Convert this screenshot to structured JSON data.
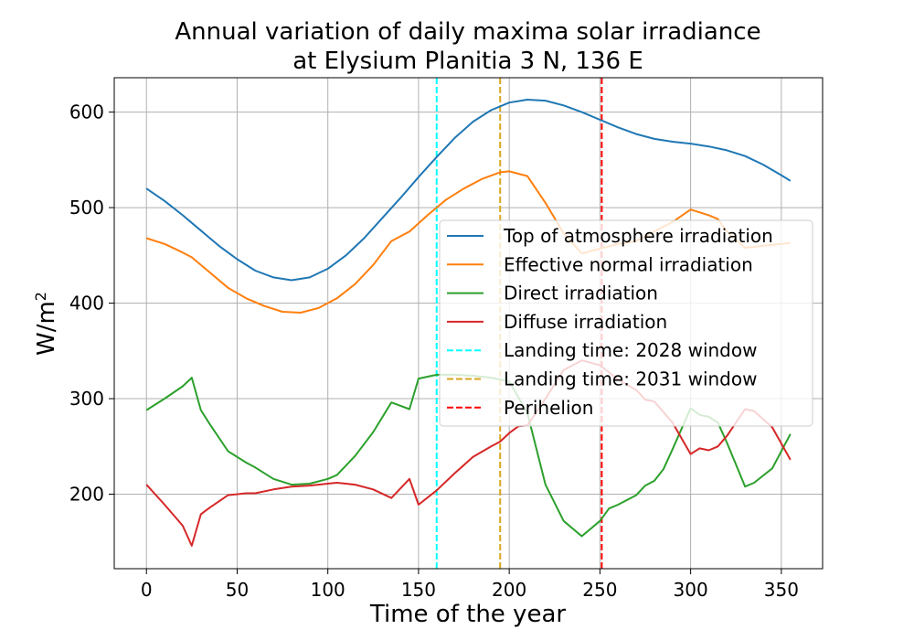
{
  "chart_data": {
    "type": "line",
    "title_line1": "Annual variation of daily maxima solar irradiance",
    "title_line2": "at Elysium Planitia 3 N, 136 E",
    "xlabel": "Time of the year",
    "ylabel": "W/m",
    "ylabel_superscript": "2",
    "xlim": [
      -17.75,
      372.75
    ],
    "ylim": [
      122,
      636
    ],
    "xticks": [
      0,
      50,
      100,
      150,
      200,
      250,
      300,
      350
    ],
    "yticks": [
      200,
      300,
      400,
      500,
      600
    ],
    "grid": true,
    "legend_position": "center-right",
    "series": [
      {
        "name": "Top of atmosphere irradiation",
        "color": "#1f77b4",
        "x": [
          0,
          10,
          20,
          30,
          40,
          50,
          60,
          70,
          80,
          90,
          100,
          110,
          120,
          130,
          140,
          150,
          160,
          170,
          180,
          190,
          200,
          210,
          220,
          230,
          240,
          250,
          260,
          270,
          280,
          290,
          300,
          310,
          320,
          330,
          340,
          350,
          355
        ],
        "y": [
          520,
          507,
          492,
          476,
          460,
          446,
          434,
          427,
          424,
          427,
          436,
          450,
          468,
          489,
          510,
          532,
          553,
          573,
          590,
          602,
          610,
          613,
          612,
          607,
          600,
          592,
          584,
          577,
          572,
          569,
          567,
          564,
          560,
          554,
          545,
          534,
          528
        ]
      },
      {
        "name": "Effective normal irradiation",
        "color": "#ff7f0e",
        "x": [
          0,
          10,
          20,
          25,
          35,
          45,
          55,
          65,
          75,
          85,
          95,
          105,
          115,
          125,
          135,
          145,
          155,
          165,
          175,
          185,
          195,
          200,
          210,
          220,
          230,
          240,
          250,
          260,
          270,
          280,
          290,
          300,
          310,
          315,
          320,
          330,
          340,
          350,
          355
        ],
        "y": [
          468,
          462,
          453,
          448,
          432,
          416,
          405,
          397,
          391,
          390,
          395,
          405,
          420,
          440,
          465,
          475,
          492,
          508,
          520,
          530,
          537,
          538,
          533,
          505,
          473,
          452,
          457,
          462,
          465,
          475,
          485,
          498,
          492,
          488,
          475,
          458,
          460,
          462,
          463
        ]
      },
      {
        "name": "Direct irradiation",
        "color": "#2ca02c",
        "x": [
          0,
          10,
          20,
          25,
          30,
          35,
          45,
          55,
          60,
          70,
          80,
          90,
          100,
          105,
          115,
          125,
          135,
          145,
          150,
          160,
          170,
          180,
          190,
          195,
          200,
          210,
          220,
          230,
          240,
          250,
          255,
          260,
          270,
          275,
          280,
          285,
          290,
          300,
          305,
          310,
          315,
          320,
          330,
          335,
          345,
          355
        ],
        "y": [
          288,
          300,
          313,
          322,
          288,
          273,
          245,
          233,
          228,
          216,
          210,
          211,
          216,
          220,
          240,
          265,
          296,
          289,
          321,
          325,
          325,
          324,
          322,
          320,
          318,
          285,
          210,
          172,
          156,
          172,
          185,
          189,
          199,
          209,
          214,
          226,
          247,
          290,
          283,
          281,
          275,
          254,
          208,
          212,
          227,
          263
        ]
      },
      {
        "name": "Diffuse irradiation",
        "color": "#d62728",
        "x": [
          0,
          10,
          20,
          25,
          30,
          35,
          45,
          55,
          60,
          70,
          80,
          90,
          100,
          105,
          115,
          125,
          135,
          145,
          150,
          160,
          170,
          180,
          190,
          195,
          200,
          205,
          210,
          220,
          230,
          240,
          250,
          260,
          270,
          275,
          280,
          290,
          300,
          305,
          310,
          315,
          320,
          330,
          335,
          345,
          355
        ],
        "y": [
          210,
          189,
          167,
          146,
          179,
          186,
          199,
          201,
          201,
          205,
          208,
          209,
          211,
          212,
          210,
          205,
          196,
          216,
          189,
          204,
          222,
          239,
          250,
          255,
          264,
          271,
          272,
          300,
          330,
          340,
          335,
          320,
          309,
          299,
          297,
          275,
          242,
          248,
          246,
          250,
          261,
          289,
          287,
          270,
          236
        ]
      }
    ],
    "vlines": [
      {
        "name": "Landing time: 2028 window",
        "x": 160,
        "color": "#00ffff"
      },
      {
        "name": "Landing time: 2031 window",
        "x": 195,
        "color": "#daa520"
      },
      {
        "name": "Perihelion",
        "x": 251,
        "color": "#ff0000"
      }
    ]
  }
}
